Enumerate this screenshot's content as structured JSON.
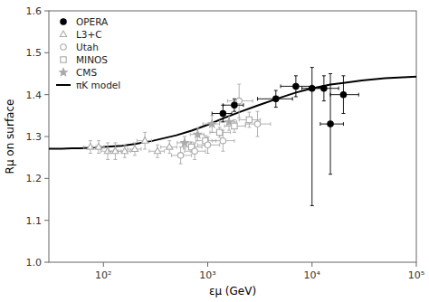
{
  "chart_data": {
    "type": "scatter",
    "title": "",
    "xlabel": "εμ (GeV)",
    "ylabel": "Rμ on surface",
    "log": "x",
    "grid": false,
    "legend": "upper left",
    "xlim": [
      30,
      100000
    ],
    "ylim": [
      1.0,
      1.6
    ],
    "xticks": [
      {
        "value": 100,
        "label": "10²"
      },
      {
        "value": 1000,
        "label": "10³"
      },
      {
        "value": 10000,
        "label": "10⁴"
      },
      {
        "value": 100000,
        "label": "10⁵"
      }
    ],
    "yticks": [
      {
        "value": 1.0,
        "label": "1.0"
      },
      1.1,
      1.2,
      1.3,
      1.4,
      1.5,
      {
        "value": 1.6,
        "label": "1.6"
      }
    ],
    "series": [
      {
        "name": "OPERA",
        "color": "#000000",
        "marker": "circle",
        "x": [
          1400,
          1800,
          4500,
          7000,
          13000,
          20000,
          10000,
          15000
        ],
        "values": [
          1.355,
          1.375,
          1.39,
          1.42,
          1.415,
          1.4,
          1.415,
          1.33
        ],
        "xerr_lo": [
          300,
          400,
          1500,
          2000,
          3000,
          5000,
          2000,
          3000
        ],
        "xerr_hi": [
          300,
          400,
          2000,
          3000,
          5000,
          8000,
          3000,
          5000
        ],
        "yerr_lo": [
          0.02,
          0.015,
          0.02,
          0.025,
          0.03,
          0.045,
          0.28,
          0.12
        ],
        "yerr_hi": [
          0.02,
          0.015,
          0.02,
          0.025,
          0.03,
          0.045,
          0.05,
          0.12
        ]
      },
      {
        "name": "L3+C",
        "color": "#aaaaaa",
        "marker": "triangle-open",
        "x": [
          75,
          90,
          110,
          130,
          160,
          200,
          250,
          330,
          430
        ],
        "values": [
          1.275,
          1.275,
          1.265,
          1.265,
          1.265,
          1.27,
          1.29,
          1.265,
          1.275
        ],
        "xerr": [
          10,
          12,
          15,
          18,
          22,
          30,
          40,
          55,
          75
        ],
        "yerr": [
          0.015,
          0.015,
          0.02,
          0.02,
          0.015,
          0.015,
          0.02,
          0.015,
          0.015
        ]
      },
      {
        "name": "Utah",
        "color": "#aaaaaa",
        "marker": "circle-open",
        "x": [
          550,
          750,
          1000,
          1400,
          2000,
          3000
        ],
        "values": [
          1.255,
          1.265,
          1.28,
          1.29,
          1.385,
          1.33
        ],
        "xerr_lo": [
          100,
          150,
          200,
          300,
          450,
          700
        ],
        "xerr_hi": [
          150,
          200,
          300,
          400,
          700,
          1000
        ],
        "yerr": [
          0.02,
          0.02,
          0.02,
          0.025,
          0.04,
          0.03
        ]
      },
      {
        "name": "MINOS",
        "color": "#aaaaaa",
        "marker": "square-open",
        "x": [
          700,
          950,
          1300,
          1800,
          2500
        ],
        "values": [
          1.275,
          1.29,
          1.31,
          1.325,
          1.34
        ],
        "xerr_lo": [
          120,
          180,
          250,
          350,
          500
        ],
        "xerr_hi": [
          180,
          250,
          350,
          500,
          700
        ],
        "yerr": [
          0.012,
          0.012,
          0.012,
          0.015,
          0.018
        ]
      },
      {
        "name": "CMS",
        "color": "#aaaaaa",
        "marker": "star",
        "x": [
          600,
          800,
          1100,
          1600
        ],
        "values": [
          1.285,
          1.305,
          1.33,
          1.335
        ],
        "xerr": [
          90,
          120,
          200,
          300
        ],
        "yerr": [
          0.015,
          0.015,
          0.02,
          0.02
        ]
      },
      {
        "name": "πK model",
        "type": "line",
        "color": "#000000",
        "line_style": "solid",
        "x": [
          30,
          40,
          50,
          60,
          70,
          80,
          100,
          150,
          200,
          300,
          500,
          700,
          1000,
          1500,
          2000,
          3000,
          5000,
          7000,
          10000,
          15000,
          20000,
          30000,
          50000,
          100000
        ],
        "values": [
          1.271,
          1.271,
          1.272,
          1.272,
          1.273,
          1.274,
          1.275,
          1.278,
          1.282,
          1.29,
          1.303,
          1.314,
          1.328,
          1.346,
          1.358,
          1.374,
          1.393,
          1.405,
          1.415,
          1.424,
          1.428,
          1.434,
          1.439,
          1.443
        ]
      }
    ]
  }
}
